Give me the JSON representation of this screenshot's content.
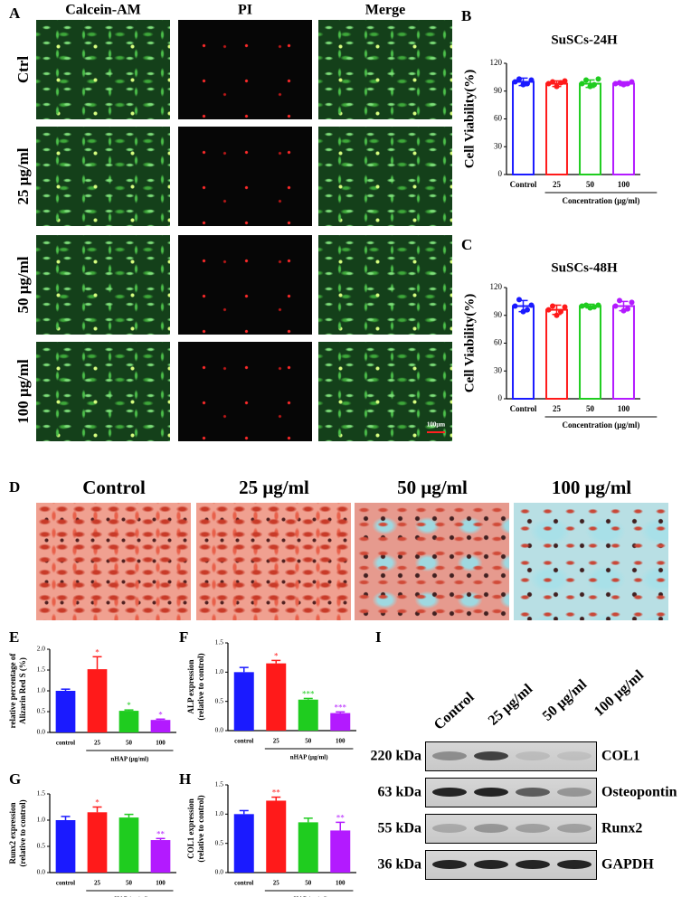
{
  "panel_labels": [
    "A",
    "B",
    "C",
    "D",
    "E",
    "F",
    "G",
    "H",
    "I"
  ],
  "panel_a": {
    "columns": [
      "Calcein-AM",
      "PI",
      "Merge"
    ],
    "rows": [
      "Ctrl",
      "25 μg/ml",
      "50 μg/ml",
      "100 μg/ml"
    ],
    "scale_bar": "100μm"
  },
  "panel_d": {
    "columns": [
      "Control",
      "25 μg/ml",
      "50 μg/ml",
      "100 μg/ml"
    ]
  },
  "panel_i": {
    "lanes": [
      "Control",
      "25 μg/ml",
      "50 μg/ml",
      "100 μg/ml"
    ],
    "blots": [
      {
        "size": "220 kDa",
        "protein": "COL1"
      },
      {
        "size": "63 kDa",
        "protein": "Osteopontin"
      },
      {
        "size": "55 kDa",
        "protein": "Runx2"
      },
      {
        "size": "36 kDa",
        "protein": "GAPDH"
      }
    ]
  },
  "chart_data": [
    {
      "type": "bar",
      "title": "SuSCs-24H",
      "ylabel": [
        "Cell Viability(%)"
      ],
      "xlabel": "Concentration (μg/ml)",
      "categories": [
        "Control",
        "25",
        "50",
        "100"
      ],
      "values": [
        100,
        98,
        98,
        98
      ],
      "errors": [
        4,
        3,
        4,
        2
      ],
      "points": [
        [
          100,
          103,
          97,
          98,
          102
        ],
        [
          98,
          100,
          95,
          99,
          101
        ],
        [
          98,
          102,
          95,
          97,
          103
        ],
        [
          98,
          99,
          97,
          98,
          100
        ]
      ],
      "colors": [
        "#1a1aff",
        "#ff1a1a",
        "#1fcc1f",
        "#b31aff"
      ],
      "hollow": true,
      "error_bars": "both",
      "ylim": [
        0,
        120
      ],
      "yticks": [
        0,
        30,
        60,
        90,
        120
      ]
    },
    {
      "type": "bar",
      "title": "SuSCs-48H",
      "ylabel": [
        "Cell Viability(%)"
      ],
      "xlabel": "Concentration (μg/ml)",
      "categories": [
        "Control",
        "25",
        "50",
        "100"
      ],
      "values": [
        100,
        96,
        100,
        100
      ],
      "errors": [
        6,
        5,
        2,
        5
      ],
      "points": [
        [
          100,
          107,
          94,
          96,
          101
        ],
        [
          96,
          100,
          90,
          94,
          99
        ],
        [
          100,
          101,
          98,
          99,
          101
        ],
        [
          100,
          106,
          95,
          97,
          104
        ]
      ],
      "colors": [
        "#1a1aff",
        "#ff1a1a",
        "#1fcc1f",
        "#b31aff"
      ],
      "hollow": true,
      "error_bars": "both",
      "ylim": [
        0,
        120
      ],
      "yticks": [
        0,
        30,
        60,
        90,
        120
      ]
    },
    {
      "type": "bar",
      "ylabel": [
        "relative percentage of",
        "Alizarin Red S (%)"
      ],
      "xlabel": "nHAP (μg/ml)",
      "categories": [
        "control",
        "25",
        "50",
        "100"
      ],
      "values": [
        1.0,
        1.52,
        0.52,
        0.3
      ],
      "errors": [
        0.04,
        0.3,
        0.02,
        0.02
      ],
      "significance": [
        null,
        "*",
        "*",
        "*"
      ],
      "colors": [
        "#1a1aff",
        "#ff1a1a",
        "#1fcc1f",
        "#b31aff"
      ],
      "hollow": false,
      "error_bars": "up",
      "ylim": [
        0,
        2
      ],
      "yticks": [
        {
          "value": 0,
          "label": "0.0"
        },
        0.5,
        {
          "value": 1,
          "label": "1.0"
        },
        1.5,
        {
          "value": 2,
          "label": "2.0"
        }
      ]
    },
    {
      "type": "bar",
      "ylabel": [
        "ALP expression",
        "(relative to control)"
      ],
      "xlabel": "nHAP (μg/ml)",
      "categories": [
        "control",
        "25",
        "50",
        "100"
      ],
      "values": [
        1.0,
        1.15,
        0.53,
        0.3
      ],
      "errors": [
        0.08,
        0.05,
        0.02,
        0.02
      ],
      "significance": [
        null,
        "*",
        "***",
        "***"
      ],
      "colors": [
        "#1a1aff",
        "#ff1a1a",
        "#1fcc1f",
        "#b31aff"
      ],
      "hollow": false,
      "error_bars": "up",
      "ylim": [
        0,
        1.5
      ],
      "yticks": [
        {
          "value": 0,
          "label": "0.0"
        },
        0.5,
        {
          "value": 1,
          "label": "1.0"
        },
        1.5
      ]
    },
    {
      "type": "bar",
      "ylabel": [
        "Runx2 expression",
        "(relative to control)"
      ],
      "xlabel": "nHAP (μg/ml)",
      "categories": [
        "control",
        "25",
        "50",
        "100"
      ],
      "values": [
        1.0,
        1.15,
        1.05,
        0.62
      ],
      "errors": [
        0.07,
        0.1,
        0.06,
        0.03
      ],
      "significance": [
        null,
        "*",
        null,
        "**"
      ],
      "colors": [
        "#1a1aff",
        "#ff1a1a",
        "#1fcc1f",
        "#b31aff"
      ],
      "hollow": false,
      "error_bars": "up",
      "ylim": [
        0,
        1.5
      ],
      "yticks": [
        {
          "value": 0,
          "label": "0.0"
        },
        0.5,
        {
          "value": 1,
          "label": "1.0"
        },
        1.5
      ]
    },
    {
      "type": "bar",
      "ylabel": [
        "COL1 expression",
        "(relative to control)"
      ],
      "xlabel": "nHAP (μg/ml)",
      "categories": [
        "control",
        "25",
        "50",
        "100"
      ],
      "values": [
        1.0,
        1.23,
        0.86,
        0.72
      ],
      "errors": [
        0.06,
        0.06,
        0.07,
        0.14
      ],
      "significance": [
        null,
        "**",
        null,
        "**"
      ],
      "colors": [
        "#1a1aff",
        "#ff1a1a",
        "#1fcc1f",
        "#b31aff"
      ],
      "hollow": false,
      "error_bars": "up",
      "ylim": [
        0,
        1.5
      ],
      "yticks": [
        {
          "value": 0,
          "label": "0.0"
        },
        0.5,
        {
          "value": 1,
          "label": "1.0"
        },
        1.5
      ]
    }
  ]
}
